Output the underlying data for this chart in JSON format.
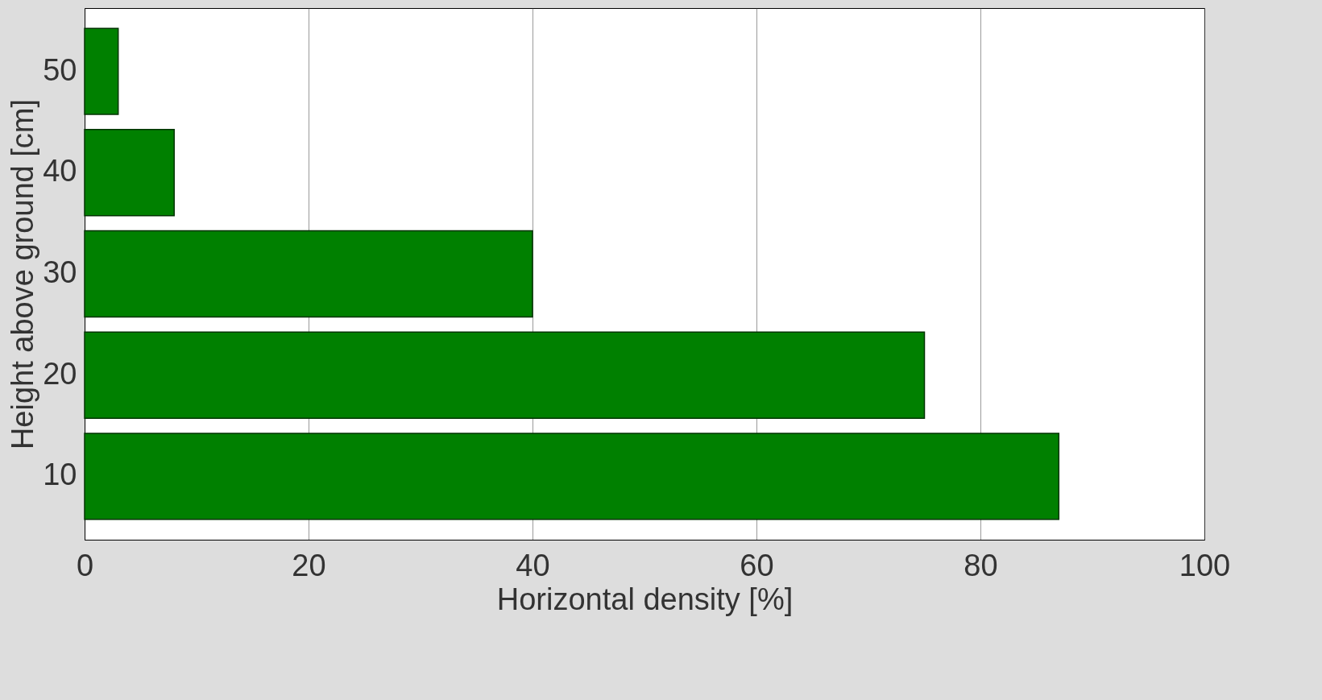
{
  "chart_data": {
    "type": "bar",
    "orientation": "horizontal",
    "xlabel": "Horizontal density [%]",
    "ylabel": "Height above ground [cm]",
    "categories": [
      "50",
      "40",
      "30",
      "20",
      "10"
    ],
    "values": [
      3,
      8,
      40,
      75,
      87
    ],
    "color": "#008000",
    "xlim": [
      0,
      100
    ],
    "xticks": [
      0,
      20,
      40,
      60,
      80,
      100
    ],
    "grid": "x"
  }
}
